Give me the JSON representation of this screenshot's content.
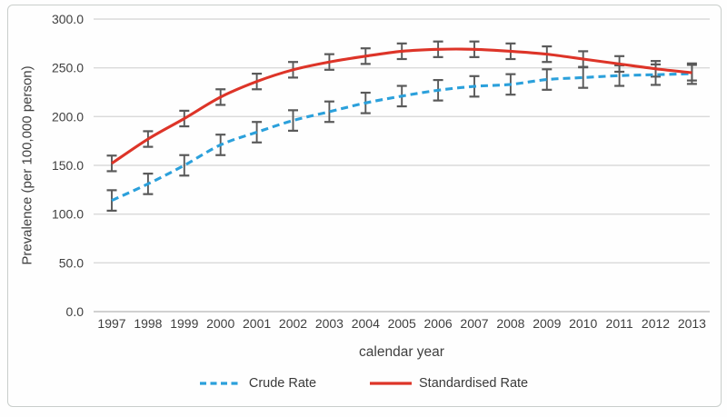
{
  "chart_data": {
    "type": "line",
    "title": "",
    "xlabel": "calendar year",
    "ylabel": "Prevalence (per 100,000 person)",
    "x": [
      "1997",
      "1998",
      "1999",
      "2000",
      "2001",
      "2002",
      "2003",
      "2004",
      "2005",
      "2006",
      "2007",
      "2008",
      "2009",
      "2010",
      "2011",
      "2012",
      "2013"
    ],
    "ylim": [
      0,
      300
    ],
    "ytick_step": 50,
    "ytick_labels": [
      "0.0",
      "50.0",
      "100.0",
      "150.0",
      "200.0",
      "250.0",
      "300.0"
    ],
    "grid": true,
    "legend_position": "bottom",
    "error_bar_color": "#595959",
    "series": [
      {
        "name": "Crude Rate",
        "style": "dashed",
        "color": "#2ba0db",
        "error": 10.5,
        "values": [
          114,
          131,
          150,
          171,
          184,
          196,
          205,
          214,
          221,
          227,
          231,
          233,
          238,
          240,
          242,
          243,
          244
        ]
      },
      {
        "name": "Standardised Rate",
        "style": "solid",
        "color": "#dd3428",
        "error": 8,
        "values": [
          152,
          177,
          198,
          220,
          236,
          248,
          256,
          262,
          267,
          269,
          269,
          267,
          264,
          259,
          254,
          249,
          245
        ]
      }
    ]
  },
  "figure": {
    "background": "#ffffff",
    "border_color": "#c9cecb",
    "grid_color": "#dadada",
    "baseline_color": "#c2c2c2",
    "axis_text_color": "#3f3f3f"
  }
}
